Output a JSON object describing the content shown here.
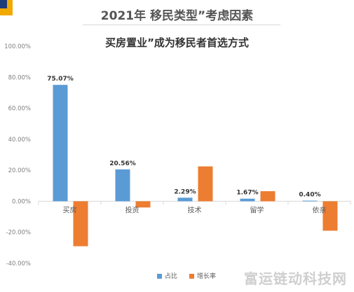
{
  "page": {
    "title": "2021年 移民类型”考虑因素",
    "subtitle": "买房置业”成为移民者首选方式",
    "watermark": "富运链动科技网"
  },
  "colors": {
    "series1": "#5b9bd5",
    "series2": "#ed7d31",
    "axis_text": "#7f7f7f",
    "label_text": "#333333"
  },
  "chart_data": {
    "type": "bar",
    "title": "买房置业”成为移民者首选方式",
    "categories": [
      "买房",
      "投资",
      "技术",
      "留学",
      "依亲"
    ],
    "series": [
      {
        "name": "占比",
        "values": [
          75.07,
          20.56,
          2.29,
          1.67,
          0.4
        ]
      },
      {
        "name": "增长率",
        "values": [
          -29.0,
          -4.0,
          22.5,
          6.5,
          -19.0
        ]
      }
    ],
    "data_labels": [
      "75.07%",
      "20.56%",
      "2.29%",
      "1.67%",
      "0.40%"
    ],
    "yticks": [
      "100.00%",
      "80.00%",
      "60.00%",
      "40.00%",
      "20.00%",
      "0.00%",
      "-20.00%",
      "-40.00%"
    ],
    "ytick_values": [
      100,
      80,
      60,
      40,
      20,
      0,
      -20,
      -40
    ],
    "ylim": [
      -40,
      100
    ],
    "grid": false,
    "legend_position": "bottom"
  }
}
